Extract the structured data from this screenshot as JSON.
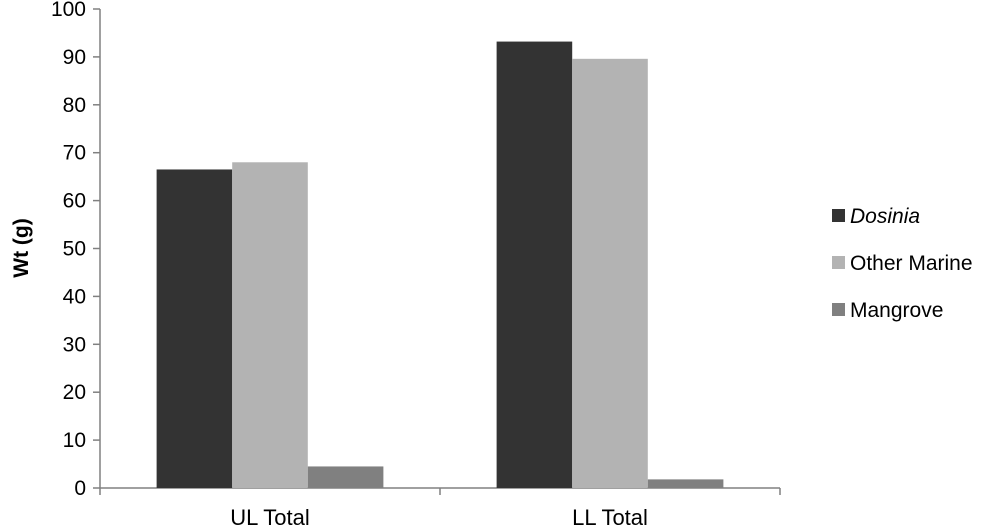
{
  "chart_data": {
    "type": "bar",
    "categories": [
      "UL Total",
      "LL Total"
    ],
    "series": [
      {
        "name": "Dosinia",
        "values": [
          66.5,
          93.2
        ],
        "color": "#333333",
        "italic": true
      },
      {
        "name": "Other Marine",
        "values": [
          68.0,
          89.6
        ],
        "color": "#b3b3b3",
        "italic": false
      },
      {
        "name": "Mangrove",
        "values": [
          4.5,
          1.8
        ],
        "color": "#808080",
        "italic": false
      }
    ],
    "title": "",
    "xlabel": "",
    "ylabel": "Wt (g)",
    "ylim": [
      0,
      100
    ],
    "yticks": [
      0,
      10,
      20,
      30,
      40,
      50,
      60,
      70,
      80,
      90,
      100
    ],
    "grid": false,
    "legend_position": "right"
  }
}
